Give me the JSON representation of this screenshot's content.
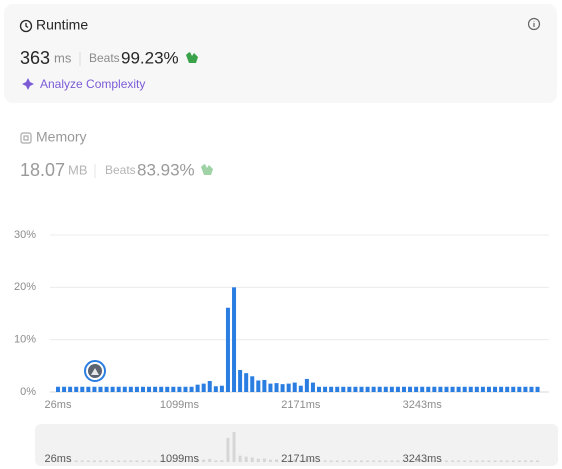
{
  "runtime": {
    "title": "Runtime",
    "value": "363",
    "unit": "ms",
    "beats_label": "Beats",
    "beats": "99.23%",
    "analyze": "Analyze Complexity"
  },
  "memory": {
    "title": "Memory",
    "value": "18.07",
    "unit": "MB",
    "beats_label": "Beats",
    "beats": "83.93%"
  },
  "chart_data": {
    "type": "bar",
    "categories": [
      "26ms",
      null,
      null,
      null,
      null,
      null,
      null,
      null,
      null,
      null,
      null,
      null,
      null,
      null,
      null,
      null,
      null,
      null,
      null,
      null,
      "1099ms",
      null,
      null,
      null,
      null,
      null,
      null,
      null,
      null,
      null,
      null,
      null,
      null,
      null,
      null,
      null,
      null,
      null,
      null,
      null,
      "2171ms",
      null,
      null,
      null,
      null,
      null,
      null,
      null,
      null,
      null,
      null,
      null,
      null,
      null,
      null,
      null,
      null,
      null,
      null,
      null,
      "3243ms",
      null,
      null,
      null,
      null,
      null,
      null,
      null,
      null,
      null,
      null,
      null,
      null,
      null,
      null,
      null,
      null,
      null,
      null,
      null
    ],
    "values": [
      1,
      1,
      1,
      1,
      1,
      1,
      1,
      1,
      1,
      1,
      1,
      1,
      1,
      1,
      1,
      1,
      1,
      1,
      1,
      1,
      1,
      1,
      1,
      1.4,
      1.6,
      2.1,
      1.1,
      1.2,
      16.1,
      20,
      4.2,
      3.6,
      3,
      2.2,
      2.3,
      1.6,
      1.7,
      1.5,
      1.6,
      1.8,
      1.2,
      2.5,
      1.8,
      1,
      1,
      1,
      1,
      1,
      1,
      1,
      1,
      1,
      1,
      1,
      1,
      1,
      1,
      1,
      1,
      1,
      1,
      1,
      1,
      1,
      1,
      1,
      1,
      1,
      1,
      1,
      1,
      1,
      1,
      1,
      1,
      1,
      1,
      1,
      1,
      1
    ],
    "color": "#2a7de1",
    "ylim": [
      0,
      30
    ],
    "yticks": [
      {
        "value": 0,
        "label": "0%"
      },
      {
        "value": 10,
        "label": "10%"
      },
      {
        "value": 20,
        "label": "20%"
      },
      {
        "value": 30,
        "label": "30%"
      }
    ],
    "grid": true
  }
}
